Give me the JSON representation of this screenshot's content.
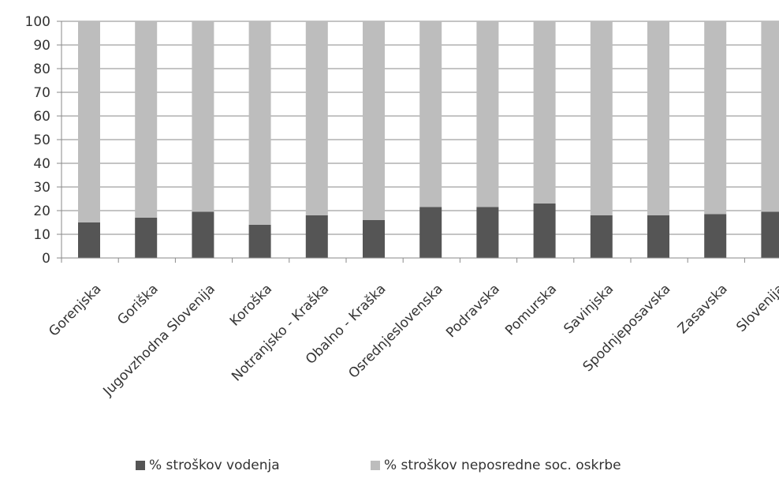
{
  "chart_data": {
    "type": "bar",
    "stacked": true,
    "categories": [
      "Gorenjska",
      "Goriška",
      "Jugovzhodna Slovenija",
      "Koroška",
      "Notranjsko - Kraška",
      "Obalno - Kraška",
      "Osrednjeslovenska",
      "Podravska",
      "Pomurska",
      "Savinjska",
      "Spodnjeposavska",
      "Zasavska",
      "Slovenija"
    ],
    "series": [
      {
        "name": "% stroškov vodenja",
        "color": "#555555",
        "values": [
          15,
          17,
          19.5,
          14,
          18,
          16,
          21.5,
          21.5,
          23,
          18,
          18,
          18.5,
          19.5
        ]
      },
      {
        "name": "% stroškov neposredne soc. oskrbe",
        "color": "#bdbdbd",
        "values": [
          85,
          83,
          80.5,
          86,
          82,
          84,
          78.5,
          78.5,
          77,
          82,
          82,
          81.5,
          80.5
        ]
      }
    ],
    "yticks": [
      "0",
      "10",
      "20",
      "30",
      "40",
      "50",
      "60",
      "70",
      "80",
      "90",
      "100"
    ],
    "ylim": [
      0,
      100
    ],
    "grid": true,
    "legend_position": "bottom"
  }
}
